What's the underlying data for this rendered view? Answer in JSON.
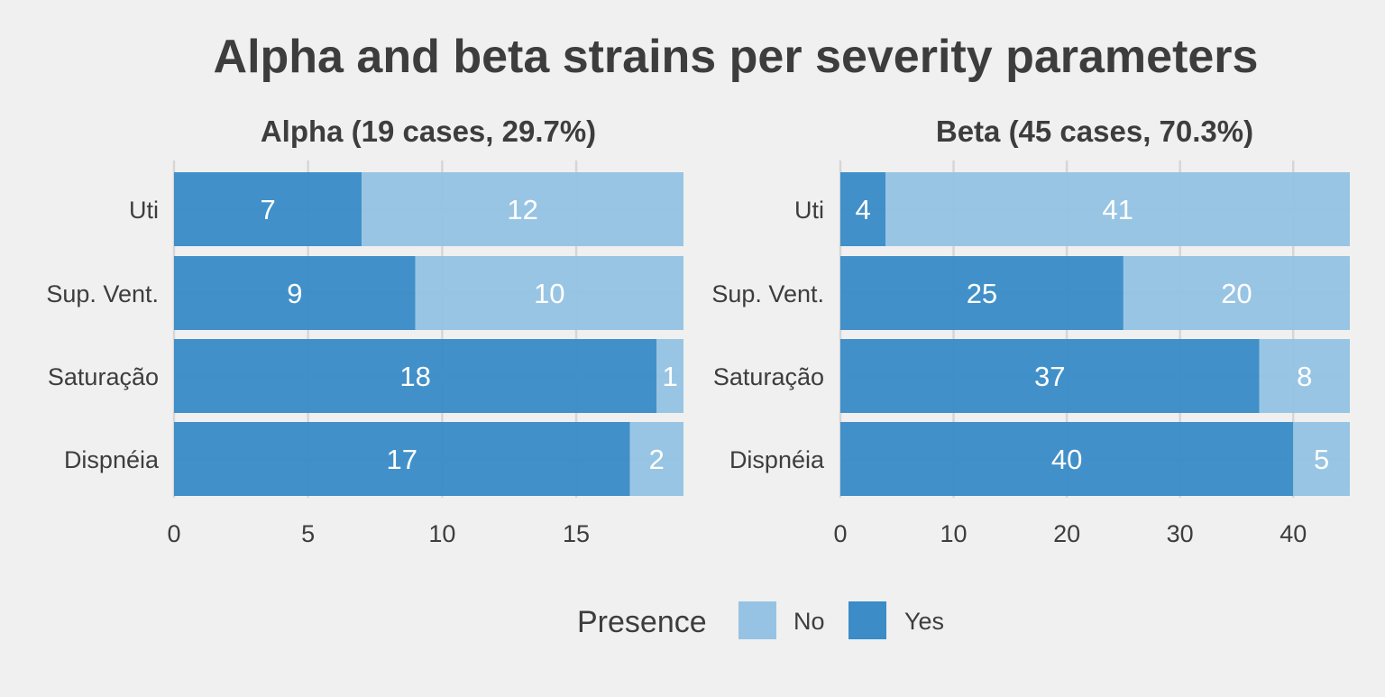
{
  "title": "Alpha and beta strains per severity parameters",
  "legend": {
    "title": "Presence",
    "items": [
      {
        "label": "No",
        "color": "#96c3e3"
      },
      {
        "label": "Yes",
        "color": "#3b8cc7"
      }
    ]
  },
  "colors": {
    "background": "#f0f0f0",
    "grid": "#d6d6d6",
    "text": "#3d3d3d",
    "bar_label": "#ffffff"
  },
  "chart_data": [
    {
      "type": "bar",
      "orientation": "horizontal",
      "stacked": true,
      "title": "Alpha (19 cases, 29.7%)",
      "categories": [
        "Uti",
        "Sup. Vent.",
        "Saturação",
        "Dispnéia"
      ],
      "series": [
        {
          "name": "Yes",
          "values": [
            7,
            9,
            18,
            17
          ]
        },
        {
          "name": "No",
          "values": [
            12,
            10,
            1,
            2
          ]
        }
      ],
      "xlim": [
        0,
        19
      ],
      "xticks": [
        0,
        5,
        10,
        15
      ],
      "grid": true
    },
    {
      "type": "bar",
      "orientation": "horizontal",
      "stacked": true,
      "title": "Beta (45 cases, 70.3%)",
      "categories": [
        "Uti",
        "Sup. Vent.",
        "Saturação",
        "Dispnéia"
      ],
      "series": [
        {
          "name": "Yes",
          "values": [
            4,
            25,
            37,
            40
          ]
        },
        {
          "name": "No",
          "values": [
            41,
            20,
            8,
            5
          ]
        }
      ],
      "xlim": [
        0,
        45
      ],
      "xticks": [
        0,
        10,
        20,
        30,
        40
      ],
      "grid": true
    }
  ]
}
